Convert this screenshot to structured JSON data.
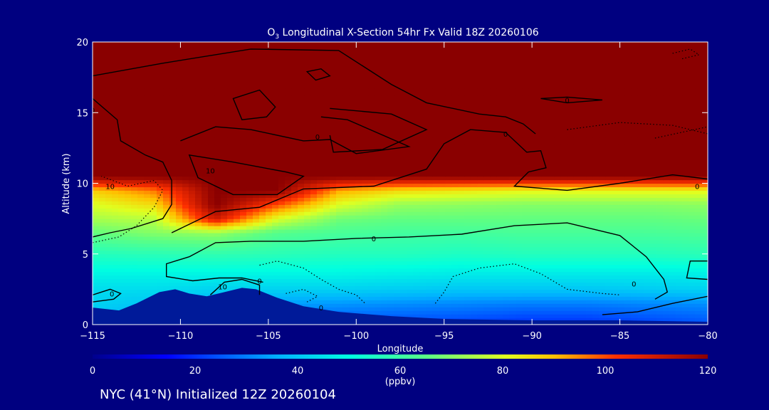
{
  "chart_data": {
    "type": "heatmap",
    "title": {
      "prefix": "O",
      "sub": "3",
      "rest": " Longitudinal X-Section 54hr  Fx Valid 18Z 20260106"
    },
    "xlabel": "Longitude",
    "ylabel": "Altitude (km)",
    "xlim": [
      -115,
      -80
    ],
    "ylim": [
      0,
      20
    ],
    "x_ticks": [
      -115,
      -110,
      -105,
      -100,
      -95,
      -90,
      -85,
      -80
    ],
    "x_tick_labels": [
      "−115",
      "−110",
      "−105",
      "−100",
      "−95",
      "−90",
      "−85",
      "−80"
    ],
    "y_ticks": [
      0,
      5,
      10,
      15,
      20
    ],
    "y_tick_labels": [
      "0",
      "5",
      "10",
      "15",
      "20"
    ],
    "colorbar": {
      "min": 0,
      "max": 120,
      "ticks": [
        0,
        20,
        40,
        60,
        80,
        100,
        120
      ],
      "tick_labels": [
        "0",
        "20",
        "40",
        "60",
        "80",
        "100",
        "120"
      ],
      "units": "(ppbv)"
    },
    "field": {
      "unit": "ppbv",
      "rows": [
        {
          "alt": 0.4,
          "values": [
            40,
            34,
            30,
            28,
            26,
            25,
            24,
            22,
            22,
            24,
            26
          ]
        },
        {
          "alt": 1.5,
          "values": [
            42,
            40,
            36,
            34,
            33,
            32,
            31,
            30,
            30,
            31,
            32
          ]
        },
        {
          "alt": 2.5,
          "values": [
            44,
            44,
            42,
            42,
            42,
            41,
            40,
            40,
            40,
            41,
            42
          ]
        },
        {
          "alt": 3.5,
          "values": [
            48,
            48,
            48,
            48,
            48,
            47,
            46,
            46,
            46,
            46,
            47
          ]
        },
        {
          "alt": 5.0,
          "values": [
            56,
            57,
            58,
            57,
            56,
            56,
            55,
            56,
            56,
            56,
            57
          ]
        },
        {
          "alt": 6.5,
          "values": [
            66,
            70,
            72,
            64,
            62,
            61,
            61,
            62,
            62,
            62,
            63
          ]
        },
        {
          "alt": 7.5,
          "values": [
            74,
            76,
            110,
            80,
            68,
            66,
            66,
            66,
            66,
            66,
            67
          ]
        },
        {
          "alt": 8.5,
          "values": [
            80,
            86,
            120,
            100,
            80,
            72,
            71,
            70,
            70,
            70,
            71
          ]
        },
        {
          "alt": 9.5,
          "values": [
            88,
            96,
            120,
            120,
            92,
            86,
            84,
            82,
            82,
            82,
            82
          ]
        },
        {
          "alt": 10.5,
          "values": [
            120,
            120,
            120,
            120,
            120,
            120,
            120,
            120,
            120,
            120,
            120
          ]
        },
        {
          "alt": 15.0,
          "values": [
            120,
            120,
            120,
            120,
            120,
            120,
            120,
            120,
            120,
            120,
            120
          ]
        },
        {
          "alt": 20.0,
          "values": [
            120,
            120,
            120,
            120,
            120,
            120,
            120,
            120,
            120,
            120,
            120
          ]
        }
      ],
      "lons": [
        -115,
        -111.5,
        -108,
        -104.5,
        -101,
        -97.5,
        -94,
        -90.5,
        -87,
        -83.5,
        -80
      ]
    },
    "terrain": [
      {
        "lon": -115,
        "alt": 1.2
      },
      {
        "lon": -113.5,
        "alt": 1.0
      },
      {
        "lon": -112.5,
        "alt": 1.5
      },
      {
        "lon": -111.2,
        "alt": 2.3
      },
      {
        "lon": -110.3,
        "alt": 2.5
      },
      {
        "lon": -109.5,
        "alt": 2.2
      },
      {
        "lon": -108.5,
        "alt": 2.0
      },
      {
        "lon": -107.5,
        "alt": 2.3
      },
      {
        "lon": -106.5,
        "alt": 2.6
      },
      {
        "lon": -105.7,
        "alt": 2.5
      },
      {
        "lon": -104.5,
        "alt": 1.9
      },
      {
        "lon": -103,
        "alt": 1.3
      },
      {
        "lon": -101,
        "alt": 0.9
      },
      {
        "lon": -98,
        "alt": 0.6
      },
      {
        "lon": -95,
        "alt": 0.4
      },
      {
        "lon": -90,
        "alt": 0.3
      },
      {
        "lon": -85,
        "alt": 0.3
      },
      {
        "lon": -80,
        "alt": 0.2
      }
    ],
    "contours": [
      {
        "style": "solid",
        "points": [
          [
            -110.5,
            6.5
          ],
          [
            -108,
            8
          ],
          [
            -105.5,
            8.3
          ],
          [
            -103,
            9.6
          ],
          [
            -99,
            9.8
          ],
          [
            -96,
            11
          ],
          [
            -95,
            12.8
          ],
          [
            -93.5,
            13.8
          ],
          [
            -91.5,
            13.6
          ],
          [
            -90.3,
            12.2
          ],
          [
            -89.5,
            12.3
          ],
          [
            -89.2,
            11.1
          ],
          [
            -90.2,
            10.8
          ],
          [
            -91,
            9.8
          ],
          [
            -88,
            9.5
          ],
          [
            -85,
            10
          ],
          [
            -82,
            10.6
          ],
          [
            -80,
            10.3
          ]
        ]
      },
      {
        "style": "solid",
        "points": [
          [
            -115,
            17.6
          ],
          [
            -111,
            18.5
          ],
          [
            -106,
            19.5
          ],
          [
            -101,
            19.4
          ],
          [
            -98,
            17
          ],
          [
            -96,
            15.7
          ],
          [
            -93,
            14.9
          ],
          [
            -91.5,
            14.7
          ],
          [
            -90.5,
            14.2
          ],
          [
            -89.8,
            13.5
          ]
        ]
      },
      {
        "style": "solid",
        "points": [
          [
            -110,
            13
          ],
          [
            -108,
            14
          ],
          [
            -106,
            13.8
          ],
          [
            -103,
            13
          ],
          [
            -101.5,
            13.1
          ],
          [
            -100,
            12.1
          ],
          [
            -97,
            12.6
          ],
          [
            -100.5,
            14.5
          ],
          [
            -102,
            14.7
          ]
        ]
      },
      {
        "style": "solid",
        "points": [
          [
            -101.5,
            15.3
          ],
          [
            -98,
            14.9
          ],
          [
            -96,
            13.8
          ],
          [
            -98.5,
            12.4
          ],
          [
            -101.3,
            12.2
          ],
          [
            -101.5,
            13.4
          ]
        ]
      },
      {
        "style": "solid",
        "closed": true,
        "points": [
          [
            -109.5,
            12
          ],
          [
            -107,
            11.5
          ],
          [
            -104,
            10.8
          ],
          [
            -103,
            10.5
          ],
          [
            -104.5,
            9.2
          ],
          [
            -107,
            9.2
          ],
          [
            -109,
            10.4
          ]
        ]
      },
      {
        "style": "solid",
        "closed": true,
        "points": [
          [
            -107,
            16
          ],
          [
            -105.5,
            16.6
          ],
          [
            -104.6,
            15.4
          ],
          [
            -105.1,
            14.7
          ],
          [
            -106.5,
            14.5
          ]
        ]
      },
      {
        "style": "solid",
        "closed": true,
        "points": [
          [
            -102.8,
            17.9
          ],
          [
            -102,
            18.1
          ],
          [
            -101.5,
            17.6
          ],
          [
            -102.3,
            17.3
          ]
        ]
      },
      {
        "style": "solid",
        "closed": true,
        "points": [
          [
            -89.5,
            16
          ],
          [
            -88,
            16.1
          ],
          [
            -86,
            15.9
          ],
          [
            -88,
            15.7
          ]
        ]
      },
      {
        "style": "solid",
        "points": [
          [
            -115,
            16
          ],
          [
            -113.6,
            14.5
          ],
          [
            -113.4,
            13
          ],
          [
            -112,
            12
          ],
          [
            -111,
            11.5
          ],
          [
            -110.5,
            10.2
          ],
          [
            -110.5,
            8.5
          ],
          [
            -111,
            7.5
          ],
          [
            -112.8,
            6.8
          ],
          [
            -114,
            6.5
          ],
          [
            -115,
            6.2
          ]
        ]
      },
      {
        "style": "solid",
        "points": [
          [
            -109.5,
            4.8
          ],
          [
            -108,
            5.8
          ],
          [
            -106,
            5.9
          ],
          [
            -103,
            5.9
          ],
          [
            -100,
            6.1
          ],
          [
            -97,
            6.2
          ],
          [
            -94,
            6.4
          ],
          [
            -91,
            7
          ],
          [
            -88,
            7.2
          ],
          [
            -85,
            6.3
          ],
          [
            -83.5,
            4.8
          ],
          [
            -82.5,
            3.2
          ],
          [
            -82.3,
            2.3
          ],
          [
            -83,
            1.8
          ]
        ]
      },
      {
        "style": "solid",
        "points": [
          [
            -109.5,
            4.8
          ],
          [
            -110.8,
            4.3
          ],
          [
            -110.8,
            3.4
          ],
          [
            -109.3,
            3.1
          ],
          [
            -107.8,
            3.3
          ],
          [
            -106.5,
            3.3
          ],
          [
            -105.3,
            3
          ]
        ]
      },
      {
        "style": "solid",
        "points": [
          [
            -80,
            4.5
          ],
          [
            -81,
            4.5
          ],
          [
            -81.2,
            3.3
          ],
          [
            -80,
            3.2
          ]
        ]
      },
      {
        "style": "solid",
        "points": [
          [
            -80,
            2
          ],
          [
            -82,
            1.5
          ],
          [
            -84,
            0.9
          ],
          [
            -86,
            0.7
          ]
        ]
      },
      {
        "style": "solid",
        "points": [
          [
            -108.3,
            2.1
          ],
          [
            -107.5,
            3
          ],
          [
            -106.5,
            3.2
          ],
          [
            -105.5,
            2.8
          ],
          [
            -105.5,
            2.1
          ]
        ]
      },
      {
        "style": "solid",
        "points": [
          [
            -115,
            2.1
          ],
          [
            -114,
            2.5
          ],
          [
            -113.4,
            2.2
          ],
          [
            -113.8,
            1.8
          ],
          [
            -115,
            1.6
          ]
        ]
      },
      {
        "style": "dotted",
        "points": [
          [
            -115,
            5.8
          ],
          [
            -113.5,
            6.2
          ],
          [
            -112.5,
            7
          ],
          [
            -111.5,
            8.3
          ],
          [
            -111,
            9.5
          ],
          [
            -111.5,
            10.2
          ],
          [
            -113,
            9.8
          ],
          [
            -114.5,
            10.5
          ]
        ]
      },
      {
        "style": "dotted",
        "points": [
          [
            -105.5,
            4.2
          ],
          [
            -104.5,
            4.5
          ],
          [
            -103,
            4
          ],
          [
            -102,
            3.2
          ],
          [
            -101,
            2.5
          ],
          [
            -100,
            2.1
          ],
          [
            -99.5,
            1.5
          ]
        ]
      },
      {
        "style": "dotted",
        "points": [
          [
            -95.5,
            1.5
          ],
          [
            -95,
            2.3
          ],
          [
            -94.5,
            3.4
          ],
          [
            -93,
            4
          ],
          [
            -91,
            4.3
          ],
          [
            -89.5,
            3.6
          ],
          [
            -88,
            2.5
          ],
          [
            -86,
            2.2
          ],
          [
            -85,
            2.1
          ]
        ]
      },
      {
        "style": "dotted",
        "points": [
          [
            -104,
            2.2
          ],
          [
            -103,
            2.5
          ],
          [
            -102.2,
            2
          ],
          [
            -102.8,
            1.6
          ]
        ]
      },
      {
        "style": "dotted",
        "points": [
          [
            -88,
            13.8
          ],
          [
            -85,
            14.3
          ],
          [
            -82,
            14.1
          ],
          [
            -80,
            13.5
          ]
        ]
      },
      {
        "style": "dotted",
        "points": [
          [
            -83,
            13.2
          ],
          [
            -81.5,
            13.6
          ],
          [
            -80,
            14
          ]
        ]
      },
      {
        "style": "dotted",
        "points": [
          [
            -82,
            19.2
          ],
          [
            -81,
            19.5
          ],
          [
            -80.5,
            19.1
          ],
          [
            -81.5,
            18.8
          ]
        ]
      }
    ],
    "contour_labels": [
      {
        "lon": -114,
        "alt": 9.8,
        "text": "10"
      },
      {
        "lon": -108.3,
        "alt": 10.9,
        "text": "10"
      },
      {
        "lon": -102.2,
        "alt": 13.3,
        "text": "0"
      },
      {
        "lon": -91.5,
        "alt": 13.5,
        "text": "0"
      },
      {
        "lon": -88,
        "alt": 15.9,
        "text": "0"
      },
      {
        "lon": -80.6,
        "alt": 9.8,
        "text": "0"
      },
      {
        "lon": -99,
        "alt": 6.1,
        "text": "0"
      },
      {
        "lon": -84.2,
        "alt": 2.9,
        "text": "0"
      },
      {
        "lon": -107.6,
        "alt": 2.7,
        "text": "10"
      },
      {
        "lon": -105.5,
        "alt": 3.1,
        "text": "0"
      },
      {
        "lon": -113.9,
        "alt": 2.2,
        "text": "0"
      },
      {
        "lon": -102,
        "alt": 1.2,
        "text": "0"
      },
      {
        "lon": -115,
        "alt": 15.2,
        "text": "0"
      }
    ]
  },
  "footer": {
    "caption": "NYC (41°N) Initialized 12Z 20260104"
  }
}
